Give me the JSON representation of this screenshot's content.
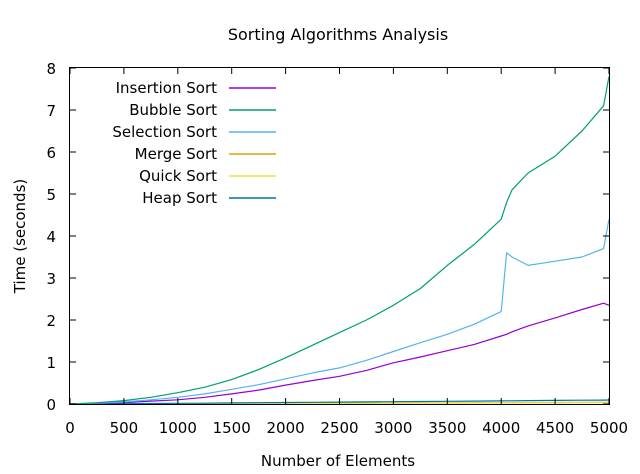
{
  "chart_data": {
    "type": "line",
    "title": "Sorting Algorithms Analysis",
    "xlabel": "Number of Elements",
    "ylabel": "Time (seconds)",
    "xlim": [
      0,
      5000
    ],
    "ylim": [
      0,
      8
    ],
    "xticks": [
      0,
      500,
      1000,
      1500,
      2000,
      2500,
      3000,
      3500,
      4000,
      4500,
      5000
    ],
    "yticks": [
      0,
      1,
      2,
      3,
      4,
      5,
      6,
      7,
      8
    ],
    "grid": false,
    "legend": "top-left",
    "x": [
      0,
      250,
      500,
      750,
      1000,
      1250,
      1500,
      1750,
      2000,
      2250,
      2500,
      2750,
      3000,
      3250,
      3500,
      3750,
      4000,
      4050,
      4100,
      4250,
      4500,
      4750,
      4950,
      5000
    ],
    "series": [
      {
        "name": "Insertion Sort",
        "color": "#9400d3",
        "values": [
          0,
          0.01,
          0.03,
          0.07,
          0.1,
          0.16,
          0.24,
          0.33,
          0.45,
          0.56,
          0.66,
          0.8,
          0.98,
          1.12,
          1.27,
          1.42,
          1.62,
          1.66,
          1.72,
          1.86,
          2.05,
          2.25,
          2.4,
          2.35
        ]
      },
      {
        "name": "Bubble Sort",
        "color": "#009e73",
        "values": [
          0,
          0.03,
          0.08,
          0.16,
          0.27,
          0.4,
          0.58,
          0.82,
          1.1,
          1.4,
          1.7,
          2.0,
          2.35,
          2.75,
          3.3,
          3.8,
          4.4,
          4.8,
          5.1,
          5.5,
          5.9,
          6.5,
          7.1,
          7.8
        ]
      },
      {
        "name": "Selection Sort",
        "color": "#56b4e9",
        "values": [
          0,
          0.02,
          0.05,
          0.1,
          0.16,
          0.24,
          0.35,
          0.46,
          0.6,
          0.74,
          0.86,
          1.04,
          1.25,
          1.46,
          1.66,
          1.9,
          2.2,
          3.6,
          3.5,
          3.3,
          3.4,
          3.5,
          3.7,
          4.4
        ]
      },
      {
        "name": "Merge Sort",
        "color": "#e69f00",
        "values": [
          0,
          0.002,
          0.004,
          0.006,
          0.008,
          0.01,
          0.012,
          0.014,
          0.016,
          0.018,
          0.02,
          0.022,
          0.024,
          0.026,
          0.028,
          0.03,
          0.032,
          0.032,
          0.033,
          0.034,
          0.036,
          0.038,
          0.04,
          0.04
        ]
      },
      {
        "name": "Quick Sort",
        "color": "#f0e442",
        "values": [
          0,
          0.001,
          0.003,
          0.004,
          0.006,
          0.008,
          0.009,
          0.01,
          0.012,
          0.014,
          0.015,
          0.017,
          0.018,
          0.02,
          0.021,
          0.023,
          0.025,
          0.025,
          0.026,
          0.027,
          0.028,
          0.03,
          0.031,
          0.032
        ]
      },
      {
        "name": "Heap Sort",
        "color": "#0072b2",
        "values": [
          0,
          0.004,
          0.008,
          0.012,
          0.016,
          0.02,
          0.025,
          0.03,
          0.035,
          0.04,
          0.045,
          0.05,
          0.055,
          0.06,
          0.065,
          0.07,
          0.075,
          0.076,
          0.077,
          0.08,
          0.085,
          0.09,
          0.094,
          0.095
        ]
      }
    ]
  }
}
